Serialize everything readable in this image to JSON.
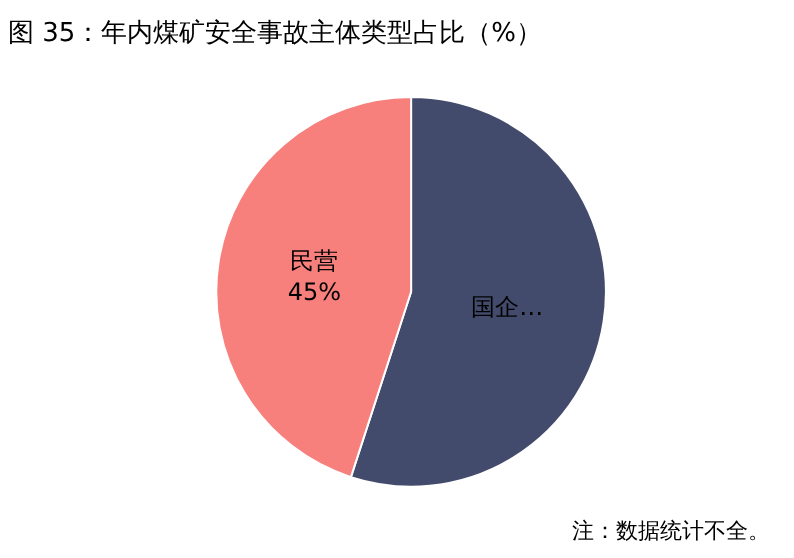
{
  "chart_data": {
    "type": "pie",
    "title": "图 35：年内煤矿安全事故主体类型占比（%）",
    "categories": [
      "国企…",
      "民营"
    ],
    "values": [
      55,
      45
    ],
    "value_labels": [
      null,
      "45%"
    ],
    "colors": [
      "#434b6c",
      "#f77f7c"
    ],
    "legend": false,
    "annotations": [
      "注：数据统计不全。"
    ]
  }
}
